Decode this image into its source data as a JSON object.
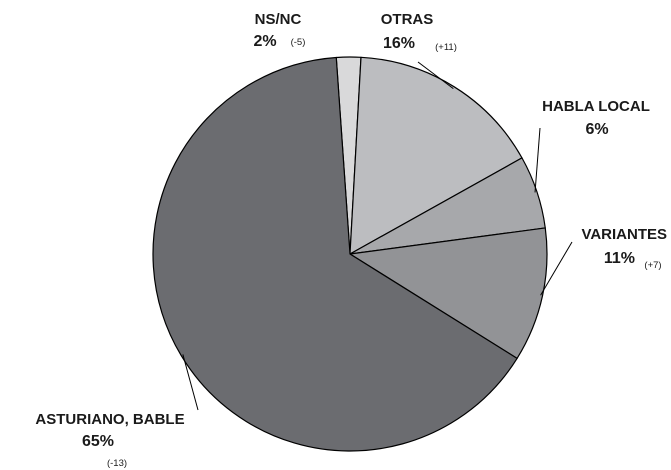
{
  "chart_data": {
    "type": "pie",
    "title": "",
    "slices": [
      {
        "label": "NS/NC",
        "value": 2,
        "value_label": "2%",
        "change": "(-5)",
        "color": "#d9d9da"
      },
      {
        "label": "OTRAS",
        "value": 16,
        "value_label": "16%",
        "change": "(+11)",
        "color": "#bcbdc0"
      },
      {
        "label": "HABLA LOCAL",
        "value": 6,
        "value_label": "6%",
        "change": "",
        "color": "#a7a8ab"
      },
      {
        "label": "VARIANTES",
        "value": 11,
        "value_label": "11%",
        "change": "(+7)",
        "color": "#929396"
      },
      {
        "label": "ASTURIANO, BABLE",
        "value": 65,
        "value_label": "65%",
        "change": "(-13)",
        "color": "#6b6c70"
      }
    ],
    "start_angle_deg": -4,
    "direction": "clockwise",
    "legend": "none",
    "grid": false
  }
}
